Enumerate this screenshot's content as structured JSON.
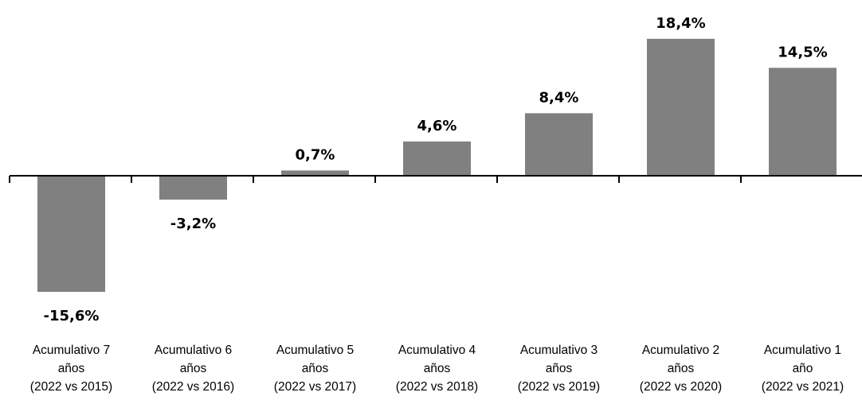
{
  "chart_data": {
    "type": "bar",
    "title": "",
    "xlabel": "",
    "ylabel": "",
    "categories": [
      [
        "Acumulativo 7",
        "años",
        "(2022 vs 2015)"
      ],
      [
        "Acumulativo 6",
        "años",
        "(2022 vs 2016)"
      ],
      [
        "Acumulativo 5",
        "años",
        "(2022 vs 2017)"
      ],
      [
        "Acumulativo 4",
        "años",
        "(2022 vs 2018)"
      ],
      [
        "Acumulativo 3",
        "años",
        "(2022 vs 2019)"
      ],
      [
        "Acumulativo 2",
        "años",
        "(2022 vs 2020)"
      ],
      [
        "Acumulativo 1",
        "año",
        "(2022 vs 2021)"
      ]
    ],
    "values": [
      -15.6,
      -3.2,
      0.7,
      4.6,
      8.4,
      18.4,
      14.5
    ],
    "data_labels": [
      "-15,6%",
      "-3,2%",
      "0,7%",
      "4,6%",
      "8,4%",
      "18,4%",
      "14,5%"
    ],
    "bar_color": "#808080",
    "axis_color": "#000000",
    "grid": false,
    "legend": "none"
  }
}
